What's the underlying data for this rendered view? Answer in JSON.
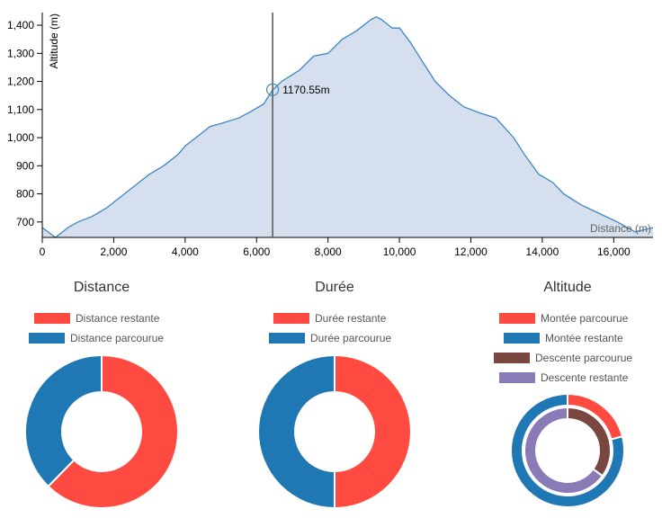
{
  "colors": {
    "profile_fill": "#d5dfee",
    "profile_line": "#3e87c2",
    "red": "#ff4a42",
    "blue": "#1f77b4",
    "brown": "#7a4640",
    "purple": "#8a7ab5",
    "cursor": "#555555",
    "axis": "#000000"
  },
  "chart_data": [
    {
      "type": "area",
      "title": "",
      "xlabel": "Distance (m)",
      "ylabel": "Altitude (m)",
      "xlim": [
        0,
        17100
      ],
      "ylim": [
        645,
        1445
      ],
      "x_ticks": [
        0,
        2000,
        4000,
        6000,
        8000,
        10000,
        12000,
        14000,
        16000
      ],
      "x_tick_labels": [
        "0",
        "2,000",
        "4,000",
        "6,000",
        "8,000",
        "10,000",
        "12,000",
        "14,000",
        "16,000"
      ],
      "y_ticks": [
        700,
        800,
        900,
        1000,
        1100,
        1200,
        1300,
        1400
      ],
      "y_tick_labels": [
        "700",
        "800",
        "900",
        "1,000",
        "1,100",
        "1,200",
        "1,300",
        "1,400"
      ],
      "x": [
        0,
        370,
        720,
        1000,
        1400,
        1800,
        2300,
        2700,
        3000,
        3400,
        3800,
        4000,
        4300,
        4700,
        5000,
        5500,
        5800,
        6200,
        6450,
        6700,
        7200,
        7600,
        8000,
        8400,
        8800,
        9200,
        9350,
        9500,
        9800,
        10000,
        10300,
        10600,
        11000,
        11400,
        11800,
        12200,
        12700,
        13200,
        13500,
        13900,
        14300,
        14600,
        15100,
        15600,
        16100,
        16600,
        17100
      ],
      "y": [
        680,
        645,
        680,
        700,
        720,
        750,
        800,
        840,
        870,
        900,
        940,
        970,
        1000,
        1040,
        1050,
        1070,
        1090,
        1120,
        1170,
        1200,
        1240,
        1290,
        1300,
        1350,
        1380,
        1420,
        1430,
        1420,
        1390,
        1390,
        1340,
        1280,
        1200,
        1150,
        1110,
        1090,
        1070,
        1000,
        940,
        870,
        840,
        800,
        760,
        730,
        700,
        665,
        680
      ],
      "cursor": {
        "x": 6450,
        "y": 1170.55,
        "label": "1170.55m"
      }
    },
    {
      "type": "pie",
      "title": "Distance",
      "legend": [
        "Distance restante",
        "Distance parcourue"
      ],
      "values": [
        62.3,
        37.7
      ]
    },
    {
      "type": "pie",
      "title": "Durée",
      "legend": [
        "Durée restante",
        "Durée parcourue"
      ],
      "values": [
        50,
        50
      ]
    },
    {
      "type": "pie",
      "title": "Altitude",
      "legend": [
        "Montée parcourue",
        "Montée restante",
        "Descente parcourue",
        "Descente restante"
      ],
      "outer_values": [
        21,
        79
      ],
      "inner_values": [
        35,
        65
      ]
    }
  ]
}
